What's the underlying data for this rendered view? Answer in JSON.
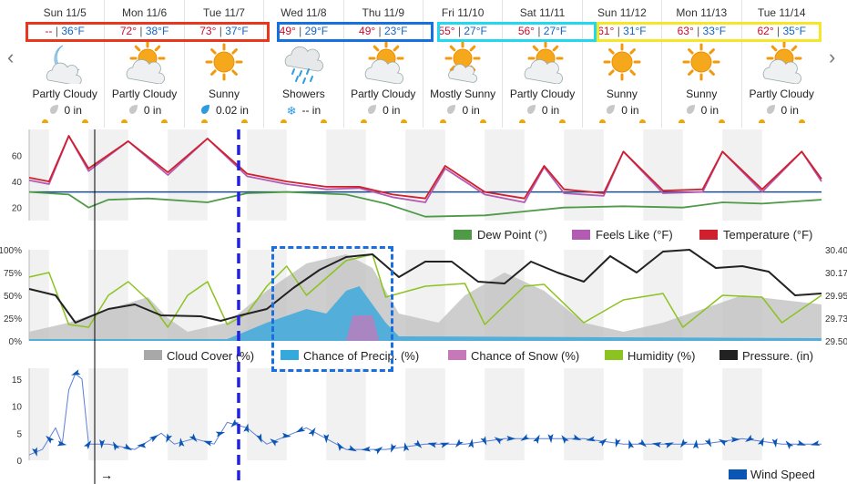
{
  "days": [
    {
      "name": "Sun 11/5",
      "hi": "--",
      "lo": "36°F",
      "icon": "partly-cloudy-night-icon",
      "condition": "Partly Cloudy",
      "precip": "0 in",
      "precip_icon": "gray-drop-icon"
    },
    {
      "name": "Mon 11/6",
      "hi": "72°",
      "lo": "38°F",
      "icon": "partly-cloudy-icon",
      "condition": "Partly Cloudy",
      "precip": "0 in",
      "precip_icon": "gray-drop-icon"
    },
    {
      "name": "Tue 11/7",
      "hi": "73°",
      "lo": "37°F",
      "icon": "sunny-icon",
      "condition": "Sunny",
      "precip": "0.02 in",
      "precip_icon": "blue-drop-icon"
    },
    {
      "name": "Wed 11/8",
      "hi": "49°",
      "lo": "29°F",
      "icon": "showers-icon",
      "condition": "Showers",
      "precip": "-- in",
      "precip_icon": "snowflake-icon"
    },
    {
      "name": "Thu 11/9",
      "hi": "49°",
      "lo": "23°F",
      "icon": "partly-cloudy-icon",
      "condition": "Partly Cloudy",
      "precip": "0 in",
      "precip_icon": "gray-drop-icon"
    },
    {
      "name": "Fri 11/10",
      "hi": "55°",
      "lo": "27°F",
      "icon": "mostly-sunny-icon",
      "condition": "Mostly Sunny",
      "precip": "0 in",
      "precip_icon": "gray-drop-icon"
    },
    {
      "name": "Sat 11/11",
      "hi": "56°",
      "lo": "27°F",
      "icon": "partly-cloudy-icon",
      "condition": "Partly Cloudy",
      "precip": "0 in",
      "precip_icon": "gray-drop-icon"
    },
    {
      "name": "Sun 11/12",
      "hi": "61°",
      "lo": "31°F",
      "icon": "sunny-icon",
      "condition": "Sunny",
      "precip": "0 in",
      "precip_icon": "gray-drop-icon"
    },
    {
      "name": "Mon 11/13",
      "hi": "63°",
      "lo": "33°F",
      "icon": "sunny-icon",
      "condition": "Sunny",
      "precip": "0 in",
      "precip_icon": "gray-drop-icon"
    },
    {
      "name": "Tue 11/14",
      "hi": "62°",
      "lo": "35°F",
      "icon": "partly-cloudy-icon",
      "condition": "Partly Cloudy",
      "precip": "0 in",
      "precip_icon": "gray-drop-icon"
    }
  ],
  "nav": {
    "prev_icon": "‹",
    "next_icon": "›"
  },
  "highlight_colors": {
    "red": "#e8371d",
    "blue": "#1570e0",
    "cyan": "#22d8ee",
    "yellow": "#f5e62a",
    "dashed": "#1a6fe0",
    "now_line": "#2222dd"
  },
  "chart_data": [
    {
      "type": "line",
      "x_start_hour": 0,
      "hours": 240,
      "yticks": [
        20,
        40,
        60
      ],
      "ylim": [
        10,
        80
      ],
      "reference_line": 32,
      "legend": [
        "Dew Point (°)",
        "Feels Like (°F)",
        "Temperature (°F)"
      ],
      "legend_colors": [
        "#4e9a47",
        "#b35ab3",
        "#d0202e"
      ],
      "series": [
        {
          "name": "Temperature (°F)",
          "color": "#d0202e",
          "points": [
            [
              0,
              43
            ],
            [
              6,
              40
            ],
            [
              12,
              75
            ],
            [
              18,
              50
            ],
            [
              30,
              71
            ],
            [
              42,
              47
            ],
            [
              54,
              73
            ],
            [
              66,
              46
            ],
            [
              78,
              40
            ],
            [
              90,
              36
            ],
            [
              100,
              36
            ],
            [
              110,
              30
            ],
            [
              120,
              27
            ],
            [
              126,
              52
            ],
            [
              138,
              32
            ],
            [
              150,
              27
            ],
            [
              156,
              52
            ],
            [
              162,
              34
            ],
            [
              174,
              31
            ],
            [
              180,
              63
            ],
            [
              192,
              33
            ],
            [
              204,
              34
            ],
            [
              210,
              63
            ],
            [
              222,
              34
            ],
            [
              234,
              63
            ],
            [
              240,
              42
            ]
          ]
        },
        {
          "name": "Feels Like (°F)",
          "color": "#b35ab3",
          "points": [
            [
              0,
              41
            ],
            [
              6,
              38
            ],
            [
              12,
              75
            ],
            [
              18,
              48
            ],
            [
              30,
              71
            ],
            [
              42,
              45
            ],
            [
              54,
              73
            ],
            [
              66,
              44
            ],
            [
              78,
              38
            ],
            [
              90,
              34
            ],
            [
              100,
              35
            ],
            [
              110,
              28
            ],
            [
              120,
              24
            ],
            [
              126,
              50
            ],
            [
              138,
              30
            ],
            [
              150,
              24
            ],
            [
              156,
              51
            ],
            [
              162,
              31
            ],
            [
              174,
              29
            ],
            [
              180,
              63
            ],
            [
              192,
              31
            ],
            [
              204,
              32
            ],
            [
              210,
              63
            ],
            [
              222,
              32
            ],
            [
              234,
              63
            ],
            [
              240,
              40
            ]
          ]
        },
        {
          "name": "Dew Point (°)",
          "color": "#4e9a47",
          "points": [
            [
              0,
              32
            ],
            [
              12,
              30
            ],
            [
              18,
              20
            ],
            [
              24,
              26
            ],
            [
              36,
              27
            ],
            [
              54,
              24
            ],
            [
              66,
              31
            ],
            [
              78,
              32
            ],
            [
              96,
              30
            ],
            [
              108,
              23
            ],
            [
              120,
              13
            ],
            [
              138,
              14
            ],
            [
              150,
              17
            ],
            [
              162,
              20
            ],
            [
              180,
              21
            ],
            [
              198,
              20
            ],
            [
              210,
              24
            ],
            [
              222,
              23
            ],
            [
              240,
              26
            ]
          ]
        }
      ]
    },
    {
      "type": "area",
      "hours": 240,
      "ylim_left": [
        0,
        100
      ],
      "left_ticks": [
        "0%",
        "25%",
        "50%",
        "75%",
        "100%"
      ],
      "right_ticks": [
        "29.50",
        "29.73",
        "29.95",
        "30.17",
        "30.40"
      ],
      "legend": [
        "Cloud Cover (%)",
        "Chance of Precip. (%)",
        "Chance of Snow (%)",
        "Humidity (%)",
        "Pressure. (in)"
      ],
      "legend_colors": [
        "#a8a8a8",
        "#35a8dc",
        "#c678b8",
        "#8cc320",
        "#222222"
      ],
      "series": [
        {
          "name": "Cloud Cover (%)",
          "color": "#bdbdbd",
          "points": [
            [
              0,
              10
            ],
            [
              12,
              20
            ],
            [
              24,
              35
            ],
            [
              36,
              48
            ],
            [
              42,
              25
            ],
            [
              48,
              10
            ],
            [
              60,
              20
            ],
            [
              72,
              55
            ],
            [
              84,
              85
            ],
            [
              96,
              95
            ],
            [
              104,
              80
            ],
            [
              112,
              30
            ],
            [
              124,
              20
            ],
            [
              132,
              50
            ],
            [
              144,
              75
            ],
            [
              156,
              55
            ],
            [
              168,
              20
            ],
            [
              180,
              10
            ],
            [
              192,
              20
            ],
            [
              204,
              35
            ],
            [
              216,
              50
            ],
            [
              228,
              45
            ],
            [
              240,
              40
            ]
          ]
        },
        {
          "name": "Chance of Precip. (%)",
          "color": "#35a8dc",
          "points": [
            [
              0,
              2
            ],
            [
              60,
              2
            ],
            [
              72,
              20
            ],
            [
              84,
              35
            ],
            [
              90,
              30
            ],
            [
              96,
              55
            ],
            [
              100,
              60
            ],
            [
              104,
              40
            ],
            [
              108,
              20
            ],
            [
              112,
              5
            ],
            [
              240,
              3
            ]
          ]
        },
        {
          "name": "Chance of Snow (%)",
          "color": "#c678b8",
          "points": [
            [
              96,
              0
            ],
            [
              98,
              28
            ],
            [
              104,
              28
            ],
            [
              106,
              0
            ]
          ]
        },
        {
          "name": "Humidity (%)",
          "color": "#8cc320",
          "points": [
            [
              0,
              70
            ],
            [
              6,
              75
            ],
            [
              12,
              18
            ],
            [
              18,
              15
            ],
            [
              24,
              50
            ],
            [
              30,
              65
            ],
            [
              36,
              45
            ],
            [
              42,
              15
            ],
            [
              48,
              50
            ],
            [
              54,
              65
            ],
            [
              60,
              18
            ],
            [
              66,
              30
            ],
            [
              72,
              60
            ],
            [
              78,
              82
            ],
            [
              84,
              50
            ],
            [
              96,
              88
            ],
            [
              104,
              95
            ],
            [
              108,
              48
            ],
            [
              120,
              60
            ],
            [
              132,
              63
            ],
            [
              138,
              18
            ],
            [
              150,
              60
            ],
            [
              156,
              62
            ],
            [
              168,
              20
            ],
            [
              180,
              45
            ],
            [
              192,
              52
            ],
            [
              198,
              15
            ],
            [
              210,
              50
            ],
            [
              222,
              48
            ],
            [
              228,
              20
            ],
            [
              240,
              50
            ]
          ]
        },
        {
          "name": "Pressure. (in)",
          "color": "#222222",
          "points": [
            [
              0,
              57
            ],
            [
              8,
              50
            ],
            [
              14,
              20
            ],
            [
              24,
              35
            ],
            [
              32,
              40
            ],
            [
              40,
              28
            ],
            [
              52,
              27
            ],
            [
              58,
              22
            ],
            [
              64,
              28
            ],
            [
              72,
              35
            ],
            [
              80,
              58
            ],
            [
              88,
              78
            ],
            [
              96,
              92
            ],
            [
              104,
              95
            ],
            [
              112,
              70
            ],
            [
              120,
              87
            ],
            [
              128,
              87
            ],
            [
              136,
              65
            ],
            [
              144,
              63
            ],
            [
              152,
              87
            ],
            [
              160,
              75
            ],
            [
              168,
              65
            ],
            [
              176,
              93
            ],
            [
              184,
              75
            ],
            [
              192,
              98
            ],
            [
              200,
              100
            ],
            [
              208,
              80
            ],
            [
              216,
              82
            ],
            [
              224,
              76
            ],
            [
              232,
              50
            ],
            [
              240,
              52
            ]
          ]
        }
      ]
    },
    {
      "type": "line",
      "hours": 240,
      "ylim": [
        0,
        17
      ],
      "yticks": [
        0,
        5,
        10,
        15
      ],
      "legend": [
        "Wind Speed"
      ],
      "legend_colors": [
        "#0b55b5"
      ],
      "series": [
        {
          "name": "Wind Speed",
          "color": "#5a7fd6",
          "points": [
            [
              0,
              1
            ],
            [
              4,
              2
            ],
            [
              8,
              6
            ],
            [
              10,
              3
            ],
            [
              12,
              13
            ],
            [
              14,
              16
            ],
            [
              16,
              15
            ],
            [
              18,
              3
            ],
            [
              24,
              3
            ],
            [
              32,
              2
            ],
            [
              40,
              5
            ],
            [
              44,
              3
            ],
            [
              50,
              4
            ],
            [
              56,
              3
            ],
            [
              60,
              7
            ],
            [
              66,
              6
            ],
            [
              72,
              3
            ],
            [
              80,
              5
            ],
            [
              84,
              6
            ],
            [
              90,
              4
            ],
            [
              96,
              2
            ],
            [
              108,
              2
            ],
            [
              120,
              3
            ],
            [
              132,
              3
            ],
            [
              144,
              4
            ],
            [
              156,
              4
            ],
            [
              168,
              4
            ],
            [
              180,
              3
            ],
            [
              192,
              3
            ],
            [
              204,
              3
            ],
            [
              216,
              4
            ],
            [
              228,
              3
            ],
            [
              240,
              3
            ]
          ]
        }
      ],
      "arrow_every_hours": 4
    }
  ]
}
